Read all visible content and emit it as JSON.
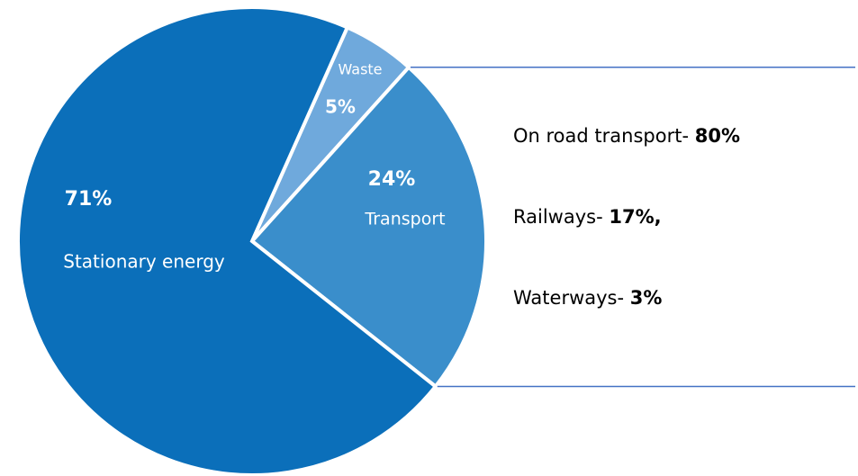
{
  "chart_data": {
    "type": "pie",
    "categories": [
      "Waste",
      "Transport",
      "Stationary energy"
    ],
    "values": [
      5,
      24,
      71
    ],
    "value_labels": [
      "5%",
      "24%",
      "71%"
    ],
    "colors": [
      "#6fa9dc",
      "#3a8ecb",
      "#0b6fba"
    ],
    "breakdown": {
      "slice": 1,
      "items": [
        {
          "label": "On road transport-",
          "value": 80,
          "value_label": "80%"
        },
        {
          "label": "Railways-",
          "value": 17,
          "value_label": "17%,"
        },
        {
          "label": "Waterways-",
          "value": 3,
          "value_label": "3%"
        }
      ]
    }
  }
}
